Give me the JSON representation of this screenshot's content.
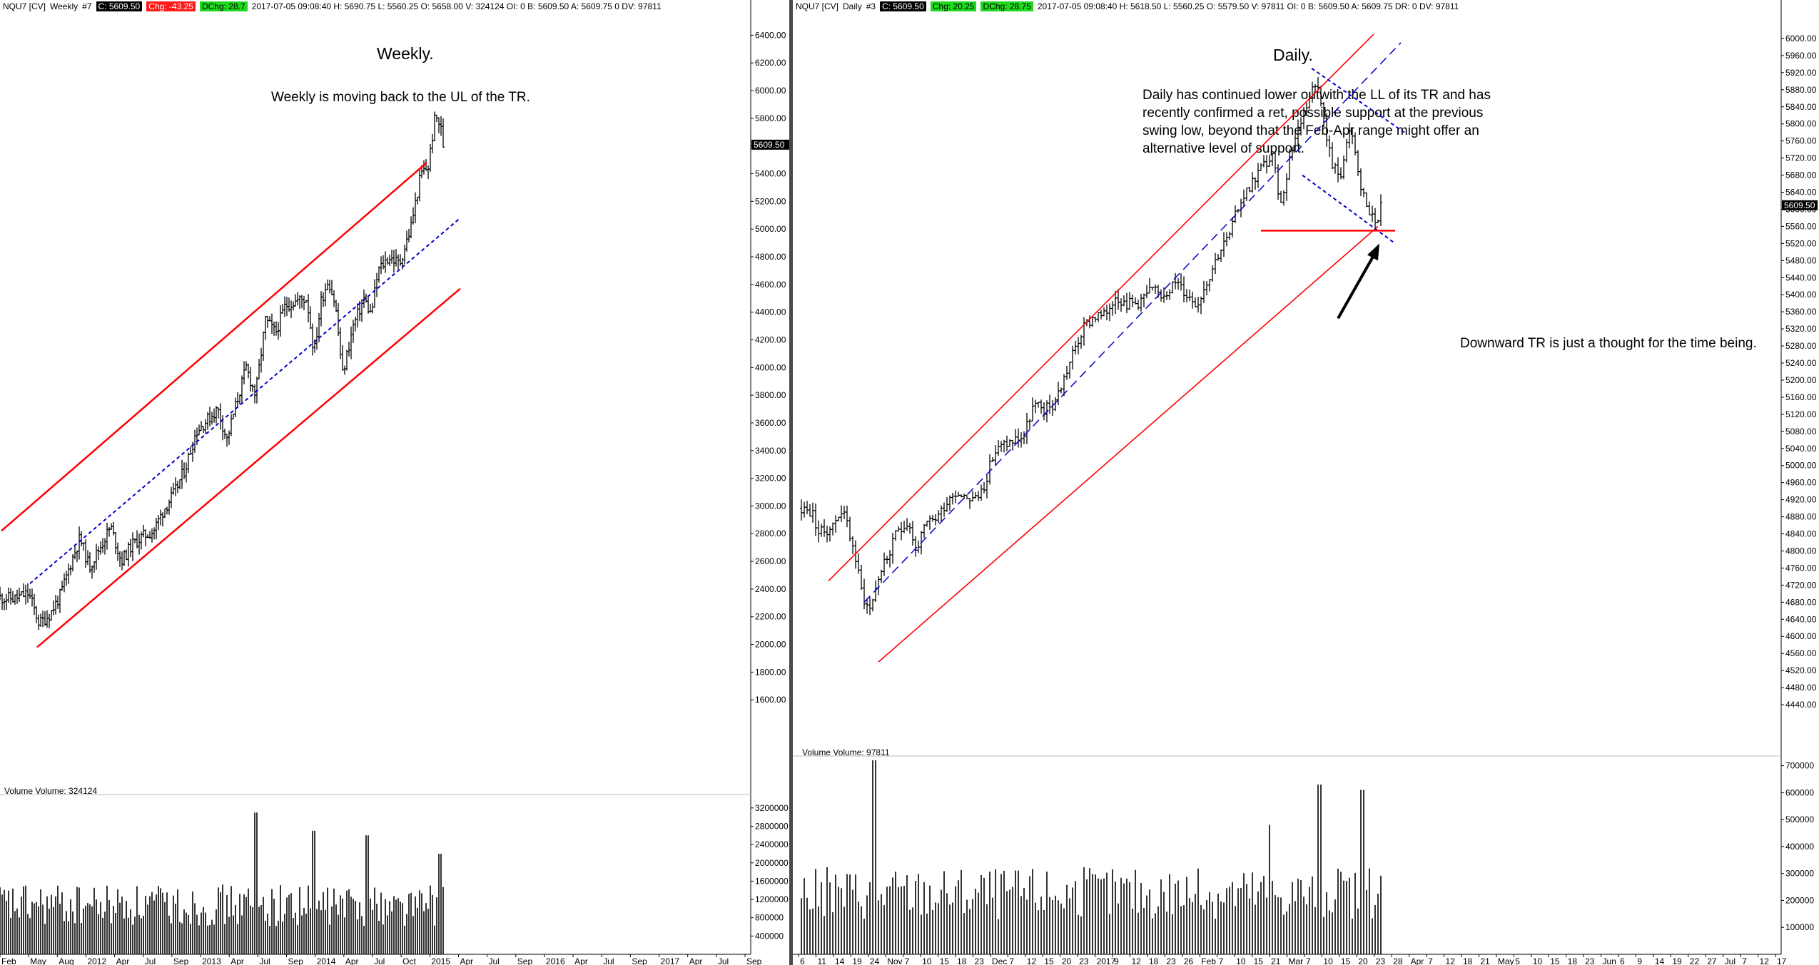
{
  "colors": {
    "up": "#000000",
    "channel": "#ff0000",
    "mid": "#0000cc",
    "arrow": "#000000"
  },
  "weekly": {
    "header": {
      "symbol": "NQU7 [CV]",
      "period": "Weekly",
      "window": "#7",
      "close": "C: 5609.50",
      "change": "Chg: -43.25",
      "dchange": "DChg: 28.7",
      "rest": "2017-07-05 09:08:40 H: 5690.75 L: 5560.25 O: 5658.00 V: 324124 OI: 0 B: 5609.50 A: 5609.75 0 DV: 97811"
    },
    "title": "Weekly.",
    "note": "Weekly is moving back to the UL of the TR.",
    "volume_label": "Volume  Volume: 324124",
    "price_label": "5609.50"
  },
  "daily": {
    "header": {
      "symbol": "NQU7 [CV]",
      "period": "Daily",
      "window": "#3",
      "close": "C: 5609.50",
      "change": "Chg: 20.25",
      "dchange": "DChg: 28.75",
      "rest": "2017-07-05 09:08:40 H: 5618.50 L: 5560.25 O: 5579.50 V: 97811 OI: 0 B: 5609.50 A: 5609.75 DR: 0 DV: 97811"
    },
    "title": "Daily.",
    "note_lines": [
      "Daily has continued lower outwith the LL of its TR and has",
      "recently confirmed a ret, possible support at the previous",
      "swing low, beyond that the Feb-Apr range might offer an",
      "alternative level of support."
    ],
    "note2": "Downward TR is just a thought for the time being.",
    "volume_label": "Volume  Volume: 97811",
    "price_label": "5609.50"
  },
  "chart_data": [
    {
      "type": "ohlc",
      "title": "Weekly.",
      "ylim": [
        1400,
        6500
      ],
      "y_ticks": [
        "6400.00",
        "6200.00",
        "6000.00",
        "5800.00",
        "5600.00",
        "5400.00",
        "5200.00",
        "5000.00",
        "4800.00",
        "4600.00",
        "4400.00",
        "4200.00",
        "4000.00",
        "3800.00",
        "3600.00",
        "3400.00",
        "3200.00",
        "3000.00",
        "2800.00",
        "2600.00",
        "2400.00",
        "2200.00",
        "2000.00",
        "1800.00",
        "1600.00"
      ],
      "x_ticks": [
        "Feb",
        "May",
        "Aug",
        "2012",
        "Apr",
        "Jul",
        "Sep",
        "2013",
        "Apr",
        "Jul",
        "Sep",
        "2014",
        "Apr",
        "Jul",
        "Oct",
        "2015",
        "Apr",
        "Jul",
        "Sep",
        "2016",
        "Apr",
        "Jul",
        "Sep",
        "2017",
        "Apr",
        "Jul",
        "Sep"
      ],
      "close_path": [
        [
          0,
          2340
        ],
        [
          20,
          2330
        ],
        [
          40,
          2370
        ],
        [
          55,
          2150
        ],
        [
          70,
          2220
        ],
        [
          85,
          2360
        ],
        [
          100,
          2600
        ],
        [
          112,
          2770
        ],
        [
          125,
          2560
        ],
        [
          140,
          2700
        ],
        [
          155,
          2850
        ],
        [
          170,
          2600
        ],
        [
          185,
          2720
        ],
        [
          200,
          2780
        ],
        [
          215,
          2820
        ],
        [
          230,
          2980
        ],
        [
          245,
          3100
        ],
        [
          260,
          3280
        ],
        [
          275,
          3540
        ],
        [
          290,
          3620
        ],
        [
          305,
          3700
        ],
        [
          318,
          3480
        ],
        [
          330,
          3720
        ],
        [
          345,
          4000
        ],
        [
          358,
          3800
        ],
        [
          372,
          4340
        ],
        [
          386,
          4250
        ],
        [
          400,
          4450
        ],
        [
          415,
          4480
        ],
        [
          430,
          4500
        ],
        [
          440,
          4100
        ],
        [
          450,
          4480
        ],
        [
          460,
          4640
        ],
        [
          470,
          4450
        ],
        [
          480,
          3950
        ],
        [
          495,
          4300
        ],
        [
          510,
          4500
        ],
        [
          520,
          4380
        ],
        [
          530,
          4700
        ],
        [
          545,
          4800
        ],
        [
          560,
          4750
        ],
        [
          575,
          5000
        ],
        [
          590,
          5400
        ],
        [
          600,
          5450
        ],
        [
          610,
          5820
        ],
        [
          617,
          5750
        ],
        [
          621,
          5609
        ]
      ],
      "channel_upper": [
        [
          2,
          2820
        ],
        [
          598,
          5480
        ]
      ],
      "channel_lower": [
        [
          52,
          1980
        ],
        [
          645,
          4570
        ]
      ],
      "midline": [
        [
          42,
          2440
        ],
        [
          645,
          5080
        ]
      ],
      "volume_ticks": [
        "3200000",
        "2800000",
        "2400000",
        "2000000",
        "1600000",
        "1200000",
        "800000",
        "400000"
      ],
      "volume": {
        "ylim": [
          0,
          3400000
        ],
        "spikes": [
          [
            358,
            3100000
          ],
          [
            440,
            2700000
          ],
          [
            515,
            2600000
          ],
          [
            617,
            2200000
          ]
        ]
      }
    },
    {
      "type": "ohlc",
      "title": "Daily.",
      "ylim": [
        4420,
        6040
      ],
      "y_ticks": [
        "6000.00",
        "5960.00",
        "5920.00",
        "5880.00",
        "5840.00",
        "5800.00",
        "5760.00",
        "5720.00",
        "5680.00",
        "5640.00",
        "5600.00",
        "5560.00",
        "5520.00",
        "5480.00",
        "5440.00",
        "5400.00",
        "5360.00",
        "5320.00",
        "5280.00",
        "5240.00",
        "5200.00",
        "5160.00",
        "5120.00",
        "5080.00",
        "5040.00",
        "5000.00",
        "4960.00",
        "4920.00",
        "4880.00",
        "4840.00",
        "4800.00",
        "4760.00",
        "4720.00",
        "4680.00",
        "4640.00",
        "4600.00",
        "4560.00",
        "4520.00",
        "4480.00",
        "4440.00"
      ],
      "x_ticks": [
        "6",
        "11",
        "14",
        "19",
        "24",
        "Nov",
        "7",
        "10",
        "15",
        "18",
        "23",
        "Dec",
        "7",
        "12",
        "15",
        "20",
        "23",
        "2017",
        "9",
        "12",
        "18",
        "23",
        "26",
        "Feb",
        "7",
        "10",
        "15",
        "21",
        "Mar",
        "7",
        "10",
        "15",
        "20",
        "23",
        "28",
        "Apr",
        "7",
        "12",
        "18",
        "21",
        "May",
        "5",
        "10",
        "15",
        "18",
        "23",
        "Jun",
        "6",
        "9",
        "14",
        "19",
        "22",
        "27",
        "Jul",
        "7",
        "12",
        "17"
      ],
      "close_path": [
        [
          0,
          4900
        ],
        [
          15,
          4890
        ],
        [
          25,
          4840
        ],
        [
          45,
          4860
        ],
        [
          55,
          4900
        ],
        [
          65,
          4860
        ],
        [
          75,
          4790
        ],
        [
          85,
          4700
        ],
        [
          95,
          4660
        ],
        [
          110,
          4750
        ],
        [
          125,
          4800
        ],
        [
          135,
          4850
        ],
        [
          150,
          4870
        ],
        [
          160,
          4800
        ],
        [
          175,
          4860
        ],
        [
          190,
          4880
        ],
        [
          205,
          4920
        ],
        [
          215,
          4940
        ],
        [
          230,
          4930
        ],
        [
          245,
          4920
        ],
        [
          255,
          4950
        ],
        [
          270,
          5030
        ],
        [
          285,
          5050
        ],
        [
          300,
          5060
        ],
        [
          312,
          5070
        ],
        [
          325,
          5140
        ],
        [
          340,
          5130
        ],
        [
          352,
          5140
        ],
        [
          365,
          5190
        ],
        [
          380,
          5260
        ],
        [
          395,
          5320
        ],
        [
          410,
          5350
        ],
        [
          425,
          5350
        ],
        [
          440,
          5400
        ],
        [
          455,
          5380
        ],
        [
          470,
          5380
        ],
        [
          490,
          5410
        ],
        [
          505,
          5400
        ],
        [
          525,
          5430
        ],
        [
          540,
          5400
        ],
        [
          555,
          5380
        ],
        [
          570,
          5440
        ],
        [
          585,
          5500
        ],
        [
          600,
          5540
        ],
        [
          615,
          5620
        ],
        [
          630,
          5660
        ],
        [
          645,
          5700
        ],
        [
          660,
          5720
        ],
        [
          672,
          5610
        ],
        [
          685,
          5730
        ],
        [
          700,
          5810
        ],
        [
          715,
          5880
        ],
        [
          725,
          5900
        ],
        [
          735,
          5770
        ],
        [
          745,
          5700
        ],
        [
          755,
          5680
        ],
        [
          770,
          5790
        ],
        [
          785,
          5640
        ],
        [
          795,
          5600
        ],
        [
          805,
          5560
        ],
        [
          812,
          5609
        ]
      ],
      "channel_upper": [
        [
          38,
          4730
        ],
        [
          802,
          6010
        ]
      ],
      "channel_lower": [
        [
          108,
          4540
        ],
        [
          808,
          5560
        ]
      ],
      "midline": [
        [
          88,
          4680
        ],
        [
          840,
          5990
        ]
      ],
      "down_channel_upper": [
        [
          715,
          5930
        ],
        [
          845,
          5780
        ]
      ],
      "down_channel_lower": [
        [
          702,
          5680
        ],
        [
          832,
          5520
        ]
      ],
      "support_level": [
        [
          644,
          5550
        ],
        [
          832,
          5550
        ]
      ],
      "volume_ticks": [
        "700000",
        "600000",
        "500000",
        "400000",
        "300000",
        "200000",
        "100000"
      ],
      "volume": {
        "ylim": [
          0,
          720000
        ],
        "spikes": [
          [
            103,
            720000
          ],
          [
            656,
            480000
          ],
          [
            727,
            630000
          ],
          [
            786,
            610000
          ]
        ]
      }
    }
  ]
}
